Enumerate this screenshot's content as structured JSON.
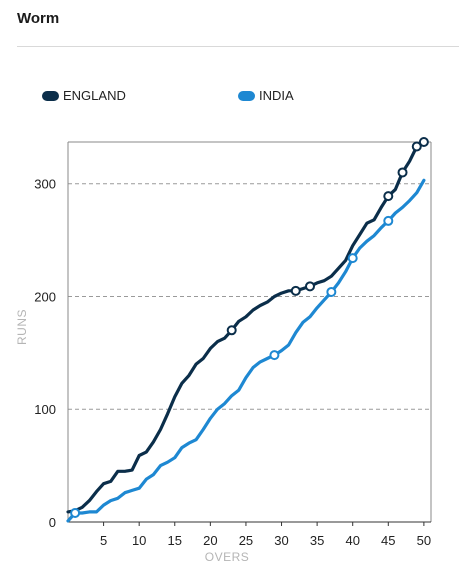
{
  "header": {
    "title": "Worm"
  },
  "colors": {
    "england": "#0b2e4a",
    "india": "#1e88d2",
    "grid": "#9a9a9a"
  },
  "chart_data": {
    "type": "line",
    "title": "Worm",
    "xlabel": "OVERS",
    "ylabel": "RUNS",
    "xlim": [
      0,
      51
    ],
    "ylim": [
      0,
      337
    ],
    "xticks": [
      5,
      10,
      15,
      20,
      25,
      30,
      35,
      40,
      45,
      50
    ],
    "yticks": [
      0,
      100,
      200,
      300
    ],
    "grid": "horizontal-dashed",
    "legend": "top-left",
    "series": [
      {
        "name": "ENGLAND",
        "x": [
          0,
          1,
          2,
          3,
          4,
          5,
          6,
          7,
          8,
          9,
          10,
          11,
          12,
          13,
          14,
          15,
          16,
          17,
          18,
          19,
          20,
          21,
          22,
          23,
          24,
          25,
          26,
          27,
          28,
          29,
          30,
          31,
          32,
          33,
          34,
          35,
          36,
          37,
          38,
          39,
          40,
          41,
          42,
          43,
          44,
          45,
          46,
          47,
          48,
          49,
          50
        ],
        "y": [
          9,
          10,
          13,
          19,
          27,
          34,
          36,
          45,
          45,
          46,
          59,
          62,
          71,
          82,
          96,
          111,
          123,
          130,
          140,
          145,
          154,
          160,
          163,
          170,
          178,
          182,
          188,
          192,
          195,
          200,
          203,
          205,
          205,
          207,
          209,
          212,
          214,
          218,
          225,
          232,
          245,
          255,
          265,
          268,
          279,
          289,
          295,
          310,
          320,
          333,
          337
        ],
        "wickets_at_over": [
          23,
          32,
          34,
          45,
          47,
          49,
          50
        ]
      },
      {
        "name": "INDIA",
        "x": [
          0,
          1,
          2,
          3,
          4,
          5,
          6,
          7,
          8,
          9,
          10,
          11,
          12,
          13,
          14,
          15,
          16,
          17,
          18,
          19,
          20,
          21,
          22,
          23,
          24,
          25,
          26,
          27,
          28,
          29,
          30,
          31,
          32,
          33,
          34,
          35,
          36,
          37,
          38,
          39,
          40,
          41,
          42,
          43,
          44,
          45,
          46,
          47,
          48,
          49,
          50
        ],
        "y": [
          1,
          8,
          8,
          9,
          9,
          15,
          19,
          21,
          26,
          28,
          30,
          38,
          42,
          50,
          53,
          57,
          66,
          70,
          73,
          82,
          92,
          100,
          105,
          112,
          117,
          128,
          137,
          142,
          145,
          148,
          152,
          157,
          168,
          177,
          182,
          190,
          197,
          204,
          212,
          222,
          234,
          243,
          249,
          254,
          261,
          267,
          274,
          279,
          285,
          292,
          303
        ],
        "wickets_at_over": [
          1,
          29,
          37,
          40,
          45
        ]
      }
    ]
  }
}
